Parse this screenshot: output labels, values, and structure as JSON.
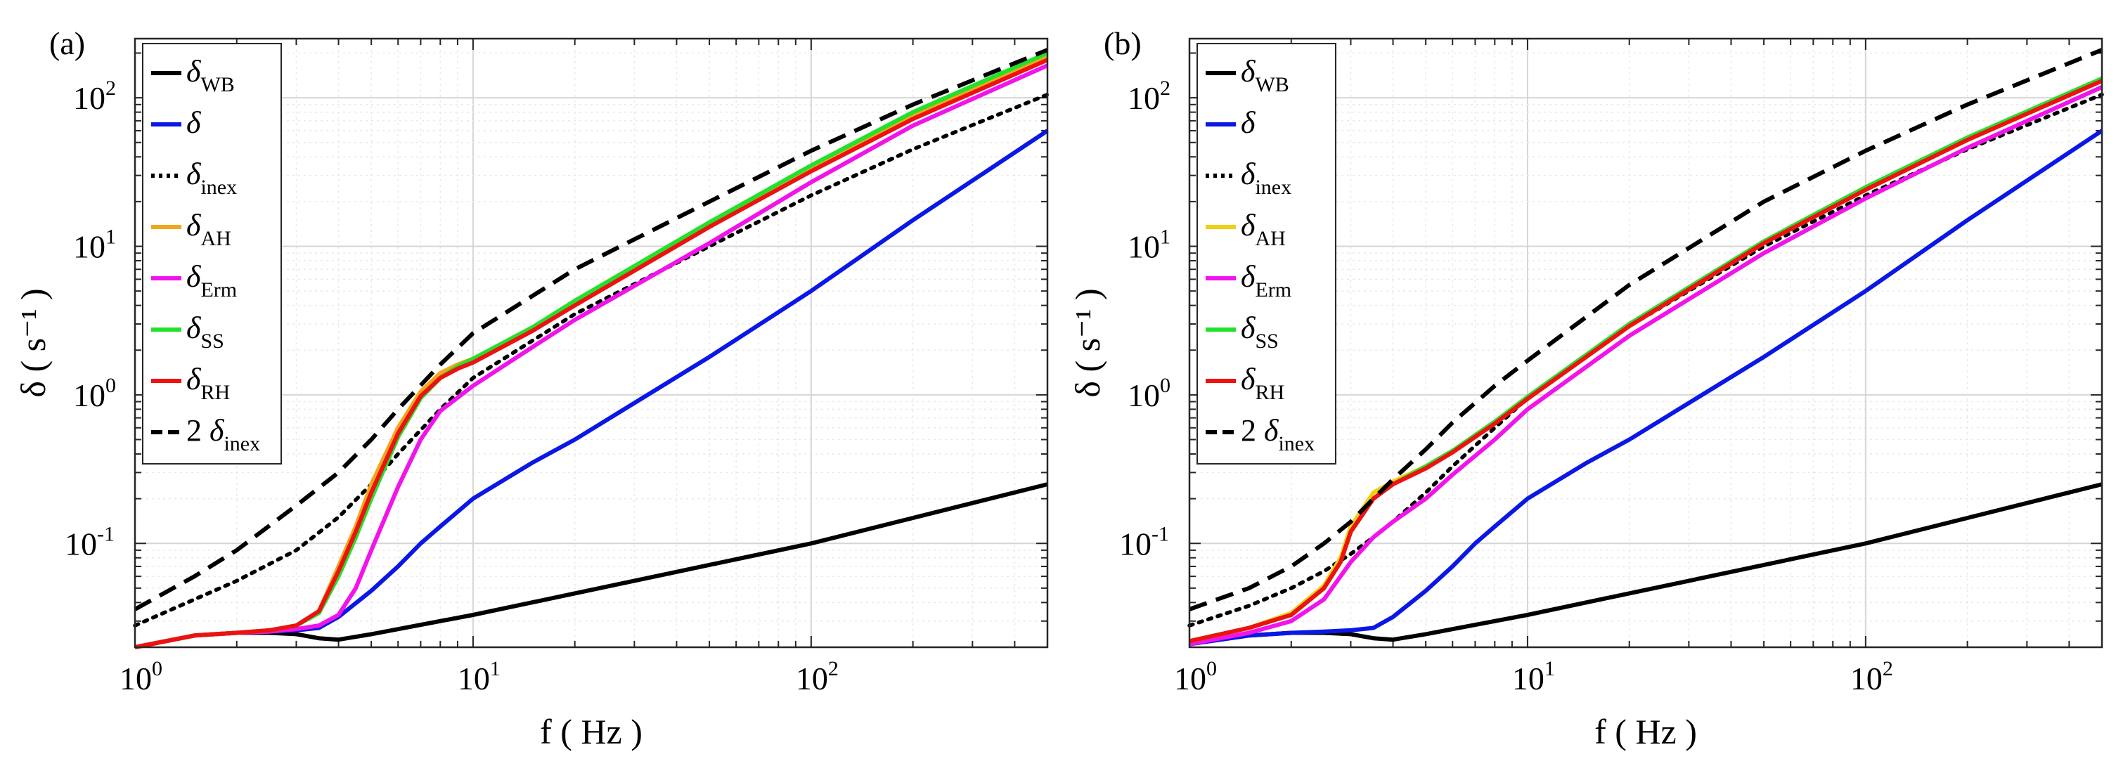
{
  "chart_data": [
    {
      "panel_label": "(a)",
      "type": "line",
      "xscale": "log",
      "yscale": "log",
      "xlim": [
        1,
        500
      ],
      "ylim": [
        0.02,
        250
      ],
      "xlabel": "f ( Hz )",
      "ylabel": "δ ( s⁻¹ )",
      "xticks": [
        {
          "base": "10",
          "exp": "0",
          "value": 1
        },
        {
          "base": "10",
          "exp": "1",
          "value": 10
        },
        {
          "base": "10",
          "exp": "2",
          "value": 100
        }
      ],
      "yticks": [
        {
          "base": "10",
          "exp": "-1",
          "value": 0.1
        },
        {
          "base": "10",
          "exp": "0",
          "value": 1
        },
        {
          "base": "10",
          "exp": "1",
          "value": 10
        },
        {
          "base": "10",
          "exp": "2",
          "value": 100
        }
      ],
      "grid": true,
      "legend_position": "top-left",
      "series": [
        {
          "key": "WB",
          "sym": "δ",
          "prefix": "",
          "sub": "WB",
          "color": "#000000",
          "dash": "solid",
          "x": [
            1,
            1.5,
            2,
            2.5,
            3,
            3.5,
            4,
            5,
            10,
            100,
            500
          ],
          "y": [
            0.02,
            0.024,
            0.025,
            0.025,
            0.0245,
            0.023,
            0.0225,
            0.0245,
            0.033,
            0.1,
            0.25
          ]
        },
        {
          "key": "delta",
          "sym": "δ",
          "prefix": "",
          "sub": "",
          "color": "#0a17e6",
          "dash": "solid",
          "x": [
            1,
            1.5,
            2,
            2.5,
            3,
            3.5,
            4,
            5,
            6,
            7,
            8,
            10,
            15,
            20,
            50,
            100,
            200,
            500
          ],
          "y": [
            0.02,
            0.024,
            0.025,
            0.0255,
            0.026,
            0.027,
            0.032,
            0.048,
            0.07,
            0.1,
            0.13,
            0.2,
            0.35,
            0.5,
            1.8,
            5,
            15,
            60
          ]
        },
        {
          "key": "inex",
          "sym": "δ",
          "prefix": "",
          "sub": "inex",
          "color": "#000000",
          "dash": "dot",
          "x": [
            1,
            1.5,
            2,
            3,
            4,
            5,
            6,
            8,
            10,
            20,
            50,
            100,
            200,
            500
          ],
          "y": [
            0.028,
            0.042,
            0.056,
            0.09,
            0.15,
            0.25,
            0.4,
            0.8,
            1.3,
            3.5,
            10,
            22,
            45,
            105
          ]
        },
        {
          "key": "AH",
          "sym": "δ",
          "prefix": "",
          "sub": "AH",
          "color": "#f0a81a",
          "dash": "solid",
          "x": [
            1,
            1.5,
            2,
            2.5,
            3,
            3.5,
            4,
            4.5,
            5,
            6,
            7,
            8,
            9,
            10,
            15,
            20,
            50,
            100,
            200,
            500
          ],
          "y": [
            0.02,
            0.024,
            0.025,
            0.026,
            0.028,
            0.035,
            0.07,
            0.13,
            0.25,
            0.6,
            1.05,
            1.4,
            1.6,
            1.75,
            2.8,
            4.2,
            14,
            33,
            75,
            190
          ]
        },
        {
          "key": "Erm",
          "sym": "δ",
          "prefix": "",
          "sub": "Erm",
          "color": "#f213eb",
          "dash": "solid",
          "x": [
            1,
            1.5,
            2,
            2.5,
            3,
            3.5,
            4,
            4.5,
            5,
            6,
            7,
            8,
            10,
            15,
            20,
            50,
            100,
            200,
            500
          ],
          "y": [
            0.02,
            0.024,
            0.025,
            0.0255,
            0.0265,
            0.028,
            0.033,
            0.05,
            0.09,
            0.24,
            0.5,
            0.78,
            1.15,
            2.1,
            3.2,
            10.5,
            27,
            65,
            165
          ]
        },
        {
          "key": "SS",
          "sym": "δ",
          "prefix": "",
          "sub": "SS",
          "color": "#23e12b",
          "dash": "solid",
          "x": [
            1,
            1.5,
            2,
            2.5,
            3,
            3.5,
            4,
            4.5,
            5,
            6,
            7,
            8,
            9,
            10,
            15,
            20,
            50,
            100,
            200,
            500
          ],
          "y": [
            0.02,
            0.024,
            0.025,
            0.026,
            0.028,
            0.034,
            0.06,
            0.11,
            0.2,
            0.52,
            0.95,
            1.3,
            1.55,
            1.75,
            2.85,
            4.3,
            14.5,
            35,
            80,
            200
          ]
        },
        {
          "key": "RH",
          "sym": "δ",
          "prefix": "",
          "sub": "RH",
          "color": "#ee1111",
          "dash": "solid",
          "x": [
            1,
            1.5,
            2,
            2.5,
            3,
            3.5,
            4,
            4.5,
            5,
            6,
            7,
            8,
            9,
            10,
            15,
            20,
            50,
            100,
            200,
            500
          ],
          "y": [
            0.02,
            0.024,
            0.025,
            0.026,
            0.028,
            0.035,
            0.065,
            0.12,
            0.22,
            0.55,
            0.98,
            1.3,
            1.5,
            1.65,
            2.7,
            4,
            13.5,
            32,
            72,
            180
          ]
        },
        {
          "key": "2inex",
          "sym": "δ",
          "prefix": "2 ",
          "sub": "inex",
          "color": "#000000",
          "dash": "dash",
          "x": [
            1,
            1.5,
            2,
            3,
            4,
            5,
            6,
            8,
            10,
            20,
            50,
            100,
            200,
            500
          ],
          "y": [
            0.036,
            0.06,
            0.09,
            0.18,
            0.3,
            0.5,
            0.8,
            1.6,
            2.6,
            7,
            20,
            44,
            90,
            210
          ]
        }
      ]
    },
    {
      "panel_label": "(b)",
      "type": "line",
      "xscale": "log",
      "yscale": "log",
      "xlim": [
        1,
        500
      ],
      "ylim": [
        0.02,
        250
      ],
      "xlabel": "f ( Hz )",
      "ylabel": "δ ( s⁻¹ )",
      "xticks": [
        {
          "base": "10",
          "exp": "0",
          "value": 1
        },
        {
          "base": "10",
          "exp": "1",
          "value": 10
        },
        {
          "base": "10",
          "exp": "2",
          "value": 100
        }
      ],
      "yticks": [
        {
          "base": "10",
          "exp": "-1",
          "value": 0.1
        },
        {
          "base": "10",
          "exp": "0",
          "value": 1
        },
        {
          "base": "10",
          "exp": "1",
          "value": 10
        },
        {
          "base": "10",
          "exp": "2",
          "value": 100
        }
      ],
      "grid": true,
      "legend_position": "top-left",
      "series": [
        {
          "key": "WB",
          "sym": "δ",
          "prefix": "",
          "sub": "WB",
          "color": "#000000",
          "dash": "solid",
          "x": [
            1,
            1.5,
            2,
            2.5,
            3,
            3.5,
            4,
            5,
            10,
            100,
            500
          ],
          "y": [
            0.021,
            0.024,
            0.025,
            0.025,
            0.0245,
            0.023,
            0.0225,
            0.0245,
            0.033,
            0.1,
            0.25
          ]
        },
        {
          "key": "delta",
          "sym": "δ",
          "prefix": "",
          "sub": "",
          "color": "#0a17e6",
          "dash": "solid",
          "x": [
            1,
            1.5,
            2,
            2.5,
            3,
            3.5,
            4,
            5,
            6,
            7,
            8,
            10,
            15,
            20,
            50,
            100,
            200,
            500
          ],
          "y": [
            0.021,
            0.024,
            0.025,
            0.0255,
            0.026,
            0.027,
            0.032,
            0.048,
            0.07,
            0.1,
            0.13,
            0.2,
            0.35,
            0.5,
            1.8,
            5,
            15,
            60
          ]
        },
        {
          "key": "inex",
          "sym": "δ",
          "prefix": "",
          "sub": "inex",
          "color": "#000000",
          "dash": "dot",
          "x": [
            1,
            1.5,
            2,
            2.5,
            3,
            3.5,
            4,
            5,
            6,
            8,
            10,
            20,
            50,
            100,
            200,
            500
          ],
          "y": [
            0.028,
            0.038,
            0.05,
            0.065,
            0.085,
            0.11,
            0.14,
            0.22,
            0.33,
            0.6,
            0.95,
            2.9,
            10,
            22,
            45,
            105
          ]
        },
        {
          "key": "AH",
          "sym": "δ",
          "prefix": "",
          "sub": "AH",
          "color": "#f0d015",
          "dash": "solid",
          "x": [
            1,
            1.5,
            2,
            2.5,
            2.8,
            3,
            3.5,
            4,
            5,
            6,
            8,
            10,
            20,
            50,
            100,
            200,
            500
          ],
          "y": [
            0.022,
            0.027,
            0.034,
            0.052,
            0.08,
            0.13,
            0.22,
            0.26,
            0.33,
            0.42,
            0.65,
            0.95,
            2.9,
            10.5,
            24,
            52,
            130
          ]
        },
        {
          "key": "Erm",
          "sym": "δ",
          "prefix": "",
          "sub": "Erm",
          "color": "#f213eb",
          "dash": "solid",
          "x": [
            1,
            1.5,
            2,
            2.5,
            3,
            3.5,
            4,
            5,
            6,
            8,
            10,
            20,
            50,
            100,
            200,
            500
          ],
          "y": [
            0.021,
            0.025,
            0.03,
            0.042,
            0.075,
            0.11,
            0.14,
            0.2,
            0.29,
            0.5,
            0.8,
            2.5,
            9,
            21,
            46,
            118
          ]
        },
        {
          "key": "SS",
          "sym": "δ",
          "prefix": "",
          "sub": "SS",
          "color": "#23e12b",
          "dash": "solid",
          "x": [
            1,
            1.5,
            2,
            2.5,
            2.8,
            3,
            3.5,
            4,
            5,
            6,
            8,
            10,
            20,
            50,
            100,
            200,
            500
          ],
          "y": [
            0.022,
            0.027,
            0.033,
            0.05,
            0.075,
            0.12,
            0.2,
            0.25,
            0.33,
            0.42,
            0.66,
            0.97,
            3,
            10.8,
            25,
            54,
            135
          ]
        },
        {
          "key": "RH",
          "sym": "δ",
          "prefix": "",
          "sub": "RH",
          "color": "#ee1111",
          "dash": "solid",
          "x": [
            1,
            1.5,
            2,
            2.5,
            2.8,
            3,
            3.5,
            4,
            5,
            6,
            8,
            10,
            20,
            50,
            100,
            200,
            500
          ],
          "y": [
            0.022,
            0.027,
            0.033,
            0.05,
            0.075,
            0.12,
            0.2,
            0.25,
            0.32,
            0.41,
            0.64,
            0.94,
            2.9,
            10.5,
            24,
            52,
            130
          ]
        },
        {
          "key": "2inex",
          "sym": "δ",
          "prefix": "2 ",
          "sub": "inex",
          "color": "#000000",
          "dash": "dash",
          "x": [
            1,
            1.5,
            2,
            2.5,
            3,
            3.5,
            4,
            5,
            6,
            8,
            10,
            20,
            50,
            100,
            200,
            500
          ],
          "y": [
            0.036,
            0.05,
            0.07,
            0.1,
            0.14,
            0.2,
            0.27,
            0.43,
            0.65,
            1.15,
            1.7,
            5.5,
            20,
            44,
            90,
            210
          ]
        }
      ]
    }
  ]
}
